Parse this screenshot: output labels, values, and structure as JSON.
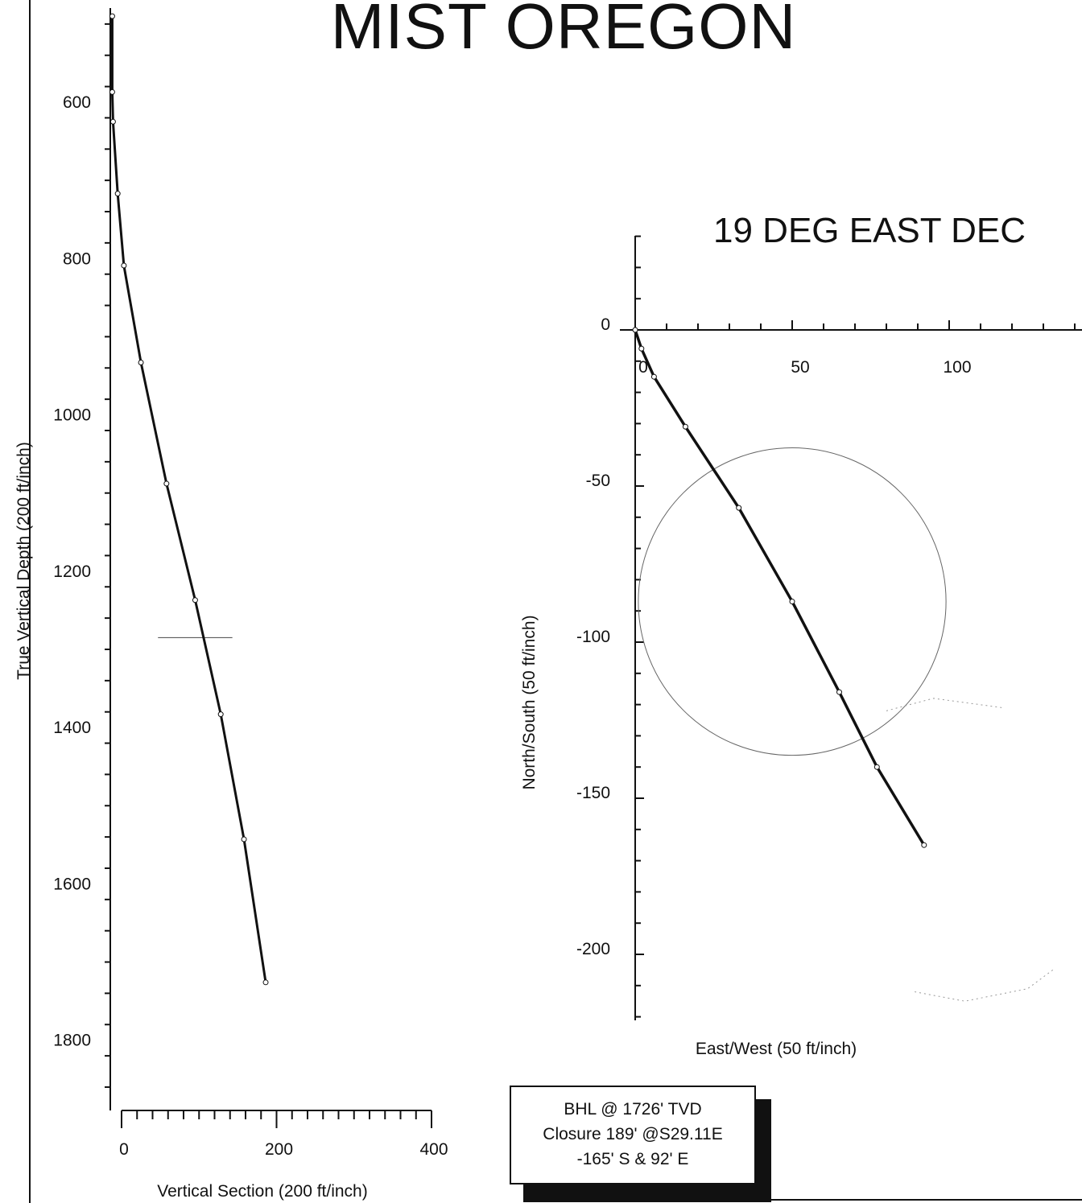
{
  "page": {
    "title": "MIST OREGON",
    "subtitle": "19 DEG EAST DEC"
  },
  "bhl_box": {
    "line1": "BHL @ 1726' TVD",
    "line2": "Closure 189' @S29.11E",
    "line3": "-165' S & 92' E"
  },
  "chart_data": [
    {
      "type": "line",
      "ylabel": "True Vertical Depth (200 ft/inch)",
      "xlabel": "Vertical Section (200 ft/inch)",
      "x_ticks": [
        0,
        200,
        400
      ],
      "y_ticks": [
        600,
        800,
        1000,
        1200,
        1400,
        1600,
        1800
      ],
      "xlim": [
        -15,
        400
      ],
      "ylim": [
        480,
        1880
      ],
      "y_inverted": true,
      "grid": false,
      "series": [
        {
          "x": [
            -12,
            -12,
            -11,
            -5,
            3,
            25,
            58,
            95,
            128,
            158,
            186
          ],
          "y": [
            490,
            587,
            625,
            717,
            809,
            933,
            1088,
            1237,
            1383,
            1543,
            1726
          ]
        }
      ],
      "annotations": [
        {
          "type": "horizontal_marker",
          "y": 1285,
          "x_range": [
            47,
            143
          ]
        }
      ]
    },
    {
      "type": "line",
      "xlabel": "East/West (50 ft/inch)",
      "ylabel": "North/South (50 ft/inch)",
      "x_ticks": [
        0,
        50,
        100
      ],
      "y_ticks": [
        0,
        -50,
        -100,
        -150,
        -200
      ],
      "xlim": [
        -1,
        143
      ],
      "ylim": [
        -220,
        30
      ],
      "grid": false,
      "series": [
        {
          "x": [
            0,
            2,
            6,
            16,
            33,
            50,
            65,
            77,
            92
          ],
          "y": [
            0,
            -6,
            -15,
            -31,
            -57,
            -87,
            -116,
            -140,
            -165
          ]
        }
      ],
      "annotations": [
        {
          "type": "circle",
          "center": [
            50,
            -87
          ],
          "radius": 49
        },
        {
          "type": "dotted_arc",
          "points": [
            [
              80,
              -122
            ],
            [
              95,
              -118
            ],
            [
              117,
              -121
            ]
          ]
        },
        {
          "type": "dotted_arc",
          "points": [
            [
              89,
              -212
            ],
            [
              105,
              -215
            ],
            [
              125,
              -211
            ],
            [
              133,
              -205
            ]
          ]
        }
      ]
    }
  ]
}
